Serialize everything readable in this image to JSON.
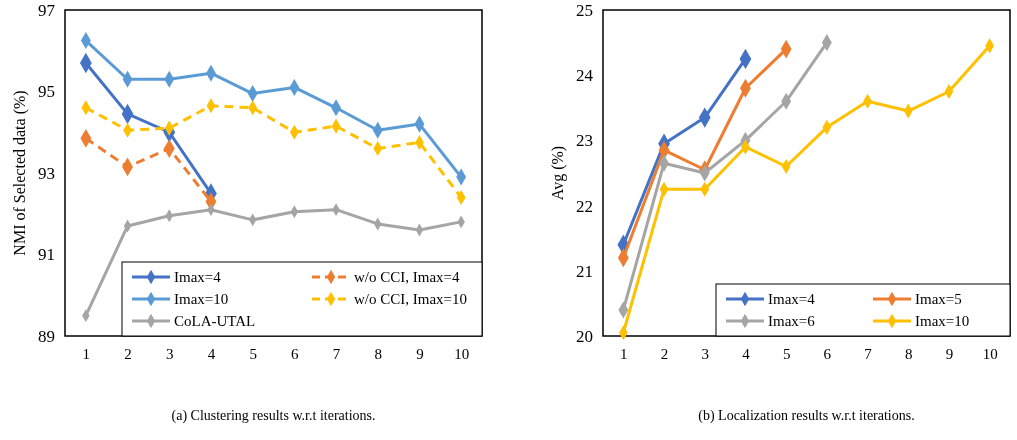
{
  "chart_data": [
    {
      "type": "line",
      "categories": [
        "1",
        "2",
        "3",
        "4",
        "5",
        "6",
        "7",
        "8",
        "9",
        "10"
      ],
      "ylabel": "NMI of Selected data (%)",
      "ylim": [
        89,
        97
      ],
      "yticks": [
        89,
        91,
        93,
        95,
        97
      ],
      "grid": false,
      "legend": "bottom right",
      "marker": "diamond",
      "annotations": [
        "(a)  Clustering results w.r.t iterations."
      ],
      "series": [
        {
          "name": "Imax=4",
          "color": "#4472c4",
          "values": [
            95.7,
            94.45,
            94.0,
            92.5,
            null,
            null,
            null,
            null,
            null,
            null
          ]
        },
        {
          "name": "w/o CCI, Imax=4",
          "color": "#ed7d31",
          "line_style": "dashed",
          "values": [
            93.85,
            93.15,
            93.6,
            92.3,
            null,
            null,
            null,
            null,
            null,
            null
          ]
        },
        {
          "name": "Imax=10",
          "color": "#5b9bd5",
          "values": [
            96.25,
            95.3,
            95.3,
            95.45,
            94.95,
            95.1,
            94.6,
            94.05,
            94.2,
            92.9
          ]
        },
        {
          "name": "w/o CCI, Imax=10",
          "color": "#ffc000",
          "line_style": "dashed",
          "values": [
            94.6,
            94.05,
            94.1,
            94.65,
            94.6,
            94.0,
            94.15,
            93.6,
            93.75,
            92.4
          ]
        },
        {
          "name": "CoLA-UTAL",
          "color": "#a5a5a5",
          "values": [
            89.5,
            91.7,
            91.95,
            92.1,
            91.85,
            92.05,
            92.1,
            91.75,
            91.6,
            91.8
          ]
        }
      ]
    },
    {
      "type": "line",
      "categories": [
        "1",
        "2",
        "3",
        "4",
        "5",
        "6",
        "7",
        "8",
        "9",
        "10"
      ],
      "ylabel": "Avg (%)",
      "ylim": [
        20,
        25
      ],
      "yticks": [
        20,
        21,
        22,
        23,
        24,
        25
      ],
      "grid": false,
      "legend": "bottom right",
      "marker": "diamond",
      "annotations": [
        "(b)  Localization results w.r.t iterations."
      ],
      "series": [
        {
          "name": "Imax=4",
          "color": "#4472c4",
          "values": [
            21.4,
            22.95,
            23.35,
            24.25,
            null,
            null,
            null,
            null,
            null,
            null
          ]
        },
        {
          "name": "Imax=5",
          "color": "#ed7d31",
          "values": [
            21.2,
            22.85,
            22.55,
            23.8,
            24.4,
            null,
            null,
            null,
            null,
            null
          ]
        },
        {
          "name": "Imax=6",
          "color": "#a5a5a5",
          "values": [
            20.4,
            22.65,
            22.5,
            23.0,
            23.6,
            24.5,
            null,
            null,
            null,
            null
          ]
        },
        {
          "name": "Imax=10",
          "color": "#ffc000",
          "values": [
            20.05,
            22.25,
            22.25,
            22.9,
            22.6,
            23.2,
            23.6,
            23.45,
            23.75,
            24.45
          ]
        }
      ]
    }
  ]
}
